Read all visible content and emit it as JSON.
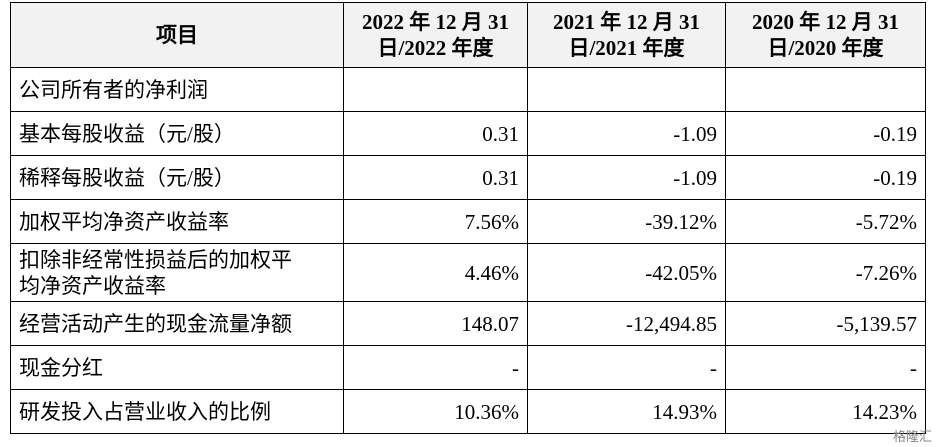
{
  "table": {
    "header": [
      [
        "项目"
      ],
      [
        "2022 年 12 月 31",
        "日/2022 年度"
      ],
      [
        "2021 年 12 月 31",
        "日/2021 年度"
      ],
      [
        "2020 年 12 月 31",
        "日/2020 年度"
      ]
    ],
    "rows": [
      [
        [
          "公司所有者的净利润"
        ],
        "",
        "",
        ""
      ],
      [
        [
          "基本每股收益（元/股）"
        ],
        "0.31",
        "-1.09",
        "-0.19"
      ],
      [
        [
          "稀释每股收益（元/股）"
        ],
        "0.31",
        "-1.09",
        "-0.19"
      ],
      [
        [
          "加权平均净资产收益率"
        ],
        "7.56%",
        "-39.12%",
        "-5.72%"
      ],
      [
        [
          "扣除非经常性损益后的加权平",
          "均净资产收益率"
        ],
        "4.46%",
        "-42.05%",
        "-7.26%"
      ],
      [
        [
          "经营活动产生的现金流量净额"
        ],
        "148.07",
        "-12,494.85",
        "-5,139.57"
      ],
      [
        [
          "现金分红"
        ],
        "-",
        "-",
        "-"
      ],
      [
        [
          "研发投入占营业收入的比例"
        ],
        "10.36%",
        "14.93%",
        "14.23%"
      ]
    ]
  },
  "watermark": "格隆汇"
}
